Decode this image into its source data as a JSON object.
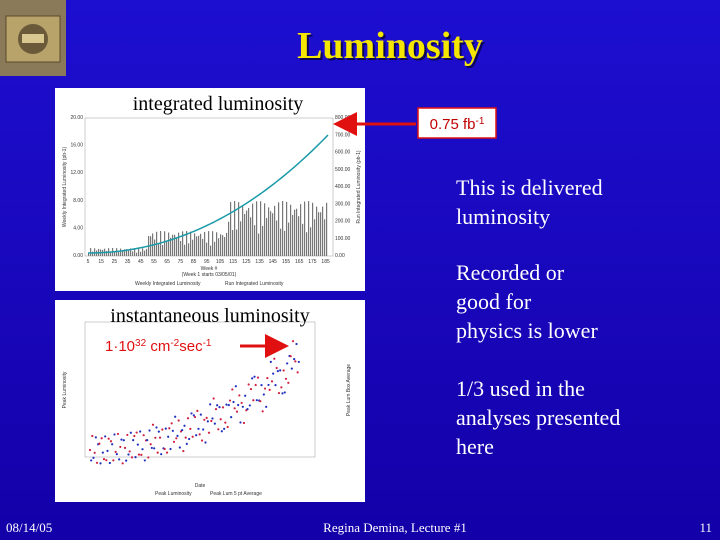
{
  "header": {
    "title": "Luminosity"
  },
  "chart1": {
    "caption": "integrated luminosity",
    "y_label": "Weekly Integrated Luminosity (pb-1)",
    "y2_label": "Run Integrated Luminosity (pb-1)",
    "x_label": "Week #",
    "x_note": "(Week 1 starts 03/05/01)",
    "yticks": [
      "0.00",
      "4.00",
      "8.00",
      "12.00",
      "16.00",
      "20.00"
    ],
    "y2ticks": [
      "0.00",
      "100.00",
      "200.00",
      "300.00",
      "400.00",
      "500.00",
      "600.00",
      "700.00",
      "800.00"
    ],
    "xticks": [
      "5",
      "15",
      "25",
      "35",
      "45",
      "55",
      "65",
      "75",
      "85",
      "95",
      "105",
      "115",
      "125",
      "135",
      "145",
      "155",
      "165",
      "175",
      "185"
    ],
    "legend": [
      "Weekly Integrated Luminosity",
      "Run Integrated Luminosity"
    ]
  },
  "callout1": {
    "parts": [
      {
        "text": "0.75 fb",
        "sup": false
      },
      {
        "text": "-1",
        "sup": true
      }
    ]
  },
  "chart2": {
    "caption": "instantaneous luminosity",
    "y_label": "Peak Luminosity",
    "y2_label": "Peak Lum Box Average",
    "x_label": "Date",
    "legend": [
      "Peak Luminosity",
      "Peak Lum 5 pt Average"
    ]
  },
  "callout2": {
    "parts": [
      {
        "text": "1",
        "sup": false
      },
      {
        "text": "·",
        "sup": false
      },
      {
        "text": "10",
        "sup": false
      },
      {
        "text": "32",
        "sup": true
      },
      {
        "text": " cm",
        "sup": false
      },
      {
        "text": "-2",
        "sup": true
      },
      {
        "text": "sec",
        "sup": false
      },
      {
        "text": "-1",
        "sup": true
      }
    ]
  },
  "bullets": [
    [
      "This is delivered",
      "luminosity"
    ],
    [
      "Recorded or",
      "good for",
      "physics is lower"
    ],
    [
      "1/3 used in the",
      "analyses presented",
      "here"
    ]
  ],
  "footer": {
    "date": "08/14/05",
    "center": "Regina Demina, Lecture #1",
    "page": "11"
  }
}
